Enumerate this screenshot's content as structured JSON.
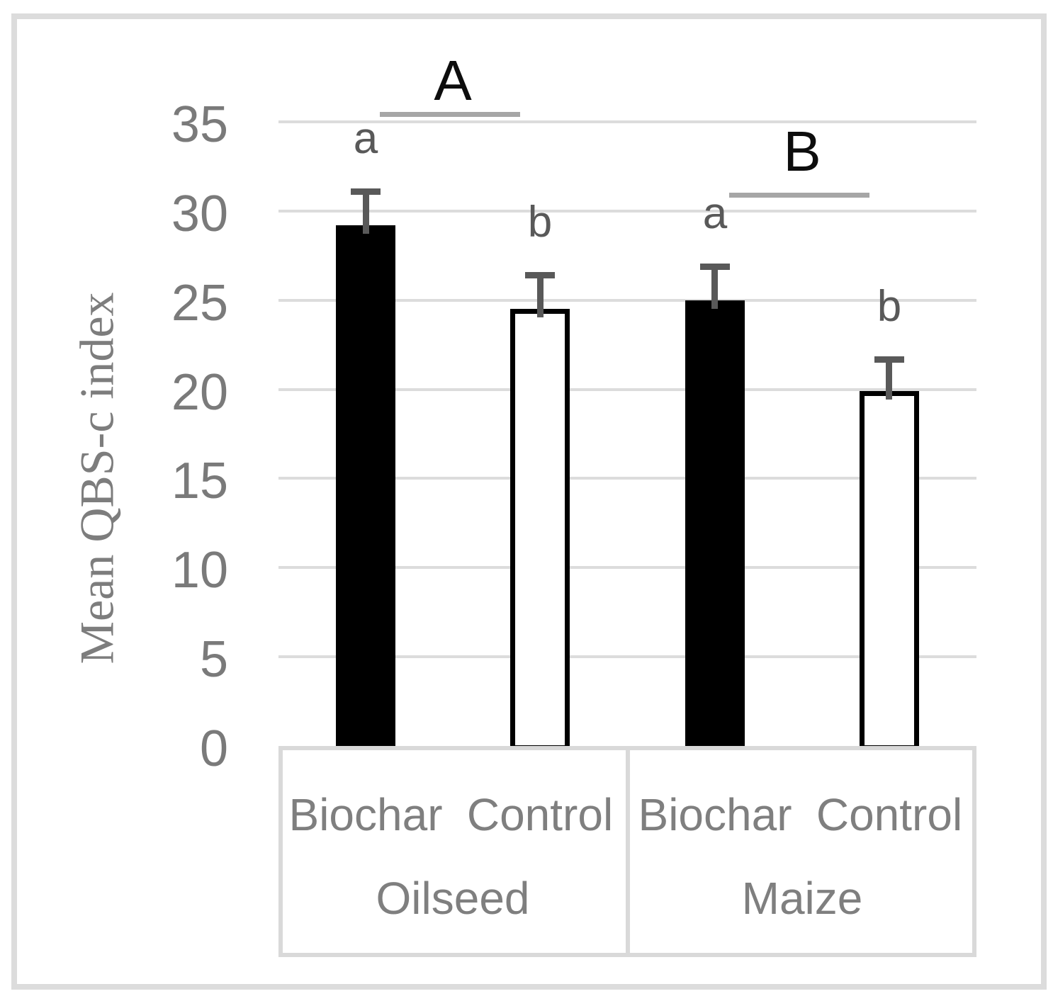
{
  "chart_data": {
    "type": "bar",
    "title": "",
    "ylabel": "Mean QBS-c index",
    "xlabel": "",
    "ylim": [
      0,
      35
    ],
    "yticks": [
      0,
      5,
      10,
      15,
      20,
      25,
      30,
      35
    ],
    "grid": "horizontal gridlines every 5 units",
    "legend_position": "none",
    "groups": [
      {
        "crop": "Oilseed",
        "significance_group_label": "A",
        "bars": [
          {
            "treatment": "Biochar",
            "value": 29.2,
            "error_plus": 1.9,
            "fill": "black",
            "sig_letter": "a"
          },
          {
            "treatment": "Control",
            "value": 24.5,
            "error_plus": 1.9,
            "fill": "white",
            "sig_letter": "b"
          }
        ]
      },
      {
        "crop": "Maize",
        "significance_group_label": "B",
        "bars": [
          {
            "treatment": "Biochar",
            "value": 25.0,
            "error_plus": 1.9,
            "fill": "black",
            "sig_letter": "a"
          },
          {
            "treatment": "Control",
            "value": 19.9,
            "error_plus": 1.8,
            "fill": "white",
            "sig_letter": "b"
          }
        ]
      }
    ],
    "colors": {
      "bar_black_fill": "#000000",
      "bar_white_fill": "#ffffff",
      "bar_outline": "#000000",
      "error_bar": "#595959",
      "gridline": "#dcdcdc",
      "axis_tick_text": "#7a7a7a",
      "axis_title_text": "#7d7d7d",
      "category_text": "#7f7f7f",
      "sig_letter_text": "#595959",
      "group_letter_text": "#0d0d0d",
      "group_underline": "#a6a6a6",
      "frame_border": "#dcdcdc"
    }
  }
}
